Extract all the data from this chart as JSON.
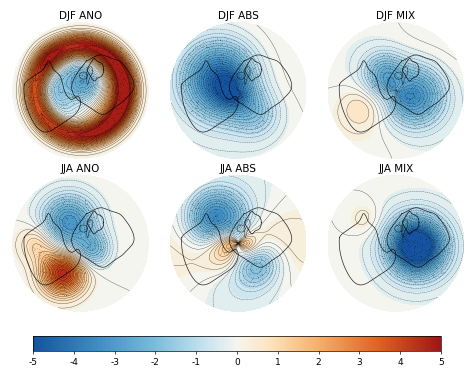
{
  "titles": [
    "DJF ANO",
    "DJF ABS",
    "DJF MIX",
    "JJA ANO",
    "JJA ABS",
    "JJA MIX"
  ],
  "colorbar_min": -5,
  "colorbar_max": 5,
  "colorbar_ticks": [
    -5,
    -4,
    -3,
    -2,
    -1,
    0,
    1,
    2,
    3,
    4,
    5
  ],
  "background_color": "#ffffff",
  "panel_bg": "#ffffff",
  "title_fontsize": 7.5,
  "tick_fontsize": 6.5,
  "figsize": [
    4.74,
    3.71
  ],
  "dpi": 100,
  "colormap_colors": [
    [
      0.0,
      "#1553a0"
    ],
    [
      0.15,
      "#3b8bc2"
    ],
    [
      0.3,
      "#7bbcdb"
    ],
    [
      0.42,
      "#c6e3f0"
    ],
    [
      0.5,
      "#f5f5f0"
    ],
    [
      0.58,
      "#fce4c0"
    ],
    [
      0.7,
      "#f5b06a"
    ],
    [
      0.85,
      "#e06020"
    ],
    [
      1.0,
      "#a01515"
    ]
  ]
}
